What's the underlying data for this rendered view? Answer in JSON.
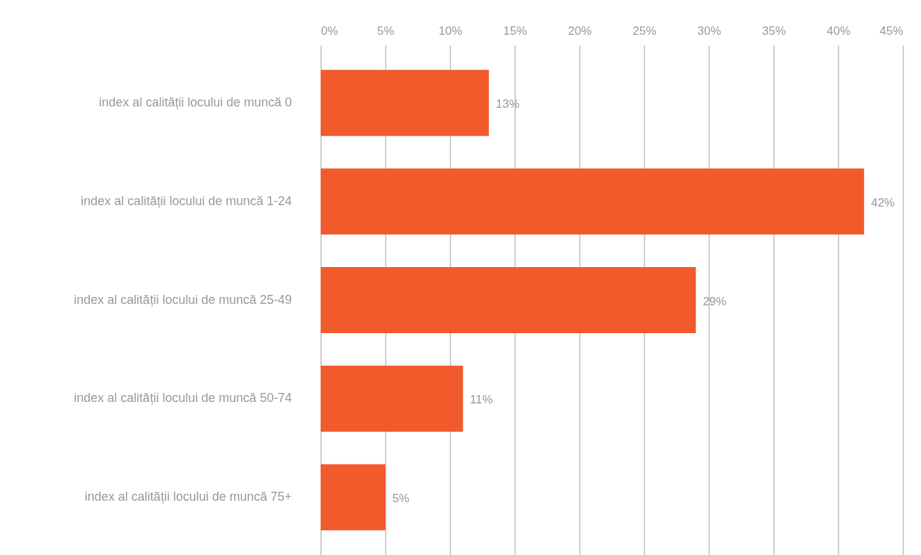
{
  "chart_data": {
    "type": "bar",
    "orientation": "horizontal",
    "categories": [
      "index al calității locului de muncă 0",
      "index al calității locului de muncă 1-24",
      "index al calității locului de muncă 25-49",
      "index al calității locului de muncă 50-74",
      "index al calității locului de muncă 75+"
    ],
    "values": [
      13,
      42,
      29,
      11,
      5
    ],
    "value_labels": [
      "13%",
      "42%",
      "29%",
      "11%",
      "5%"
    ],
    "color": "#f15a2b",
    "xlim": [
      0,
      45
    ],
    "xticks": [
      {
        "value": 0,
        "label": "0%"
      },
      {
        "value": 5,
        "label": "5%"
      },
      {
        "value": 10,
        "label": "10%"
      },
      {
        "value": 15,
        "label": "15%"
      },
      {
        "value": 20,
        "label": "20%"
      },
      {
        "value": 25,
        "label": "25%"
      },
      {
        "value": 30,
        "label": "30%"
      },
      {
        "value": 35,
        "label": "35%"
      },
      {
        "value": 40,
        "label": "40%"
      },
      {
        "value": 45,
        "label": "45%"
      }
    ],
    "grid": "x"
  }
}
